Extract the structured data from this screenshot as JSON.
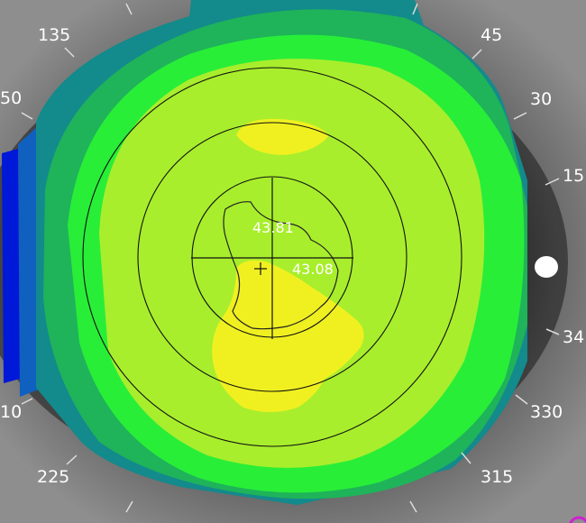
{
  "scene": "corneal topography axial map overlaid on grayscale eye photograph",
  "color_scale": {
    "deep_blue": "#0018d8",
    "blue": "#1060c0",
    "teal": "#138a8c",
    "dark_green": "#1fb35a",
    "green": "#28ee38",
    "yellow_green": "#a8ee2c",
    "yellow": "#f0f020"
  },
  "measurements": {
    "k_steep": "43.81",
    "k_flat": "43.08"
  },
  "axis_labels": {
    "a135": "135",
    "a45": "45",
    "a150": "50",
    "a30": "30",
    "a15": "15",
    "a345": "34",
    "a210": "10",
    "a330": "330",
    "a225": "225",
    "a315": "315"
  },
  "icons": {
    "center_cross": "plus-marker",
    "reflection": "light-reflex"
  }
}
